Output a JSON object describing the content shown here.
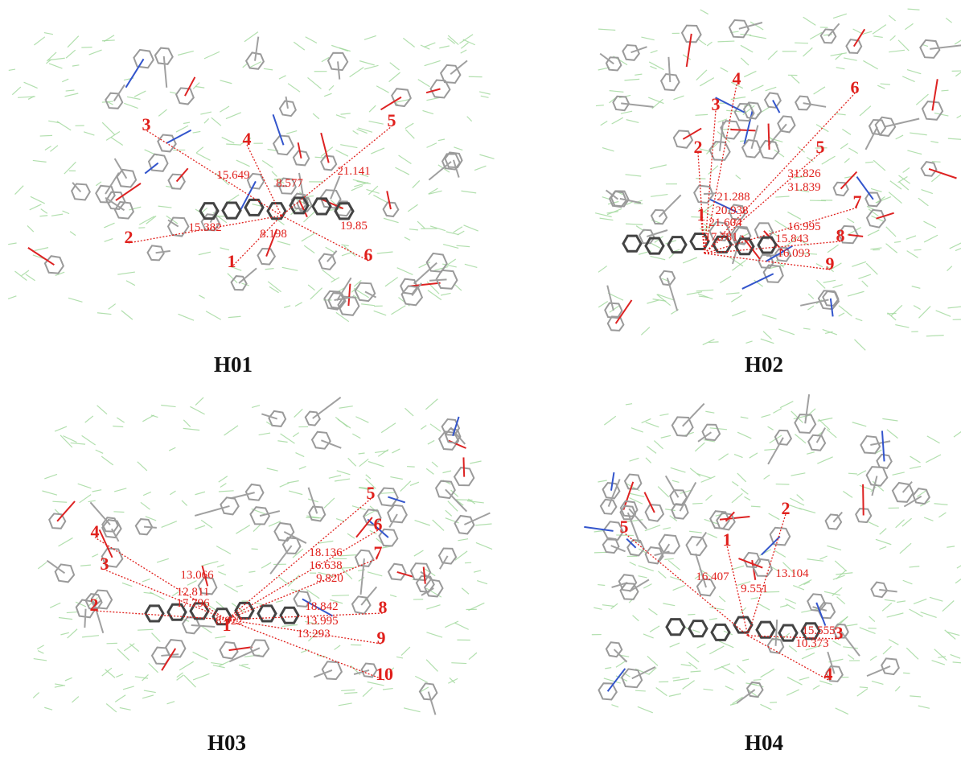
{
  "panels": [
    {
      "caption": "H01",
      "molecule_numbers": [
        "1",
        "2",
        "3",
        "4",
        "5",
        "6"
      ],
      "distances": [
        "15.649",
        "8.577",
        "21.141",
        "15.382",
        "8.198",
        "19.85"
      ]
    },
    {
      "caption": "H02",
      "molecule_numbers": [
        "1",
        "2",
        "3",
        "4",
        "5",
        "6",
        "7",
        "8",
        "9"
      ],
      "distances": [
        "21.288",
        "31.826",
        "20.938",
        "31.839",
        "21.604",
        "16.995",
        "17.781",
        "15.843",
        "16.093"
      ]
    },
    {
      "caption": "H03",
      "molecule_numbers": [
        "1",
        "2",
        "3",
        "4",
        "5",
        "6",
        "7",
        "8",
        "9",
        "10"
      ],
      "distances": [
        "13.066",
        "12.811",
        "17.796",
        "18.136",
        "16.638",
        "9.820",
        "8.922",
        "18.842",
        "13.995",
        "13.293"
      ]
    },
    {
      "caption": "H04",
      "molecule_numbers": [
        "1",
        "2",
        "3",
        "4",
        "5"
      ],
      "distances": [
        "16.407",
        "13.104",
        "9.551",
        "15.555",
        "10.373"
      ]
    }
  ]
}
